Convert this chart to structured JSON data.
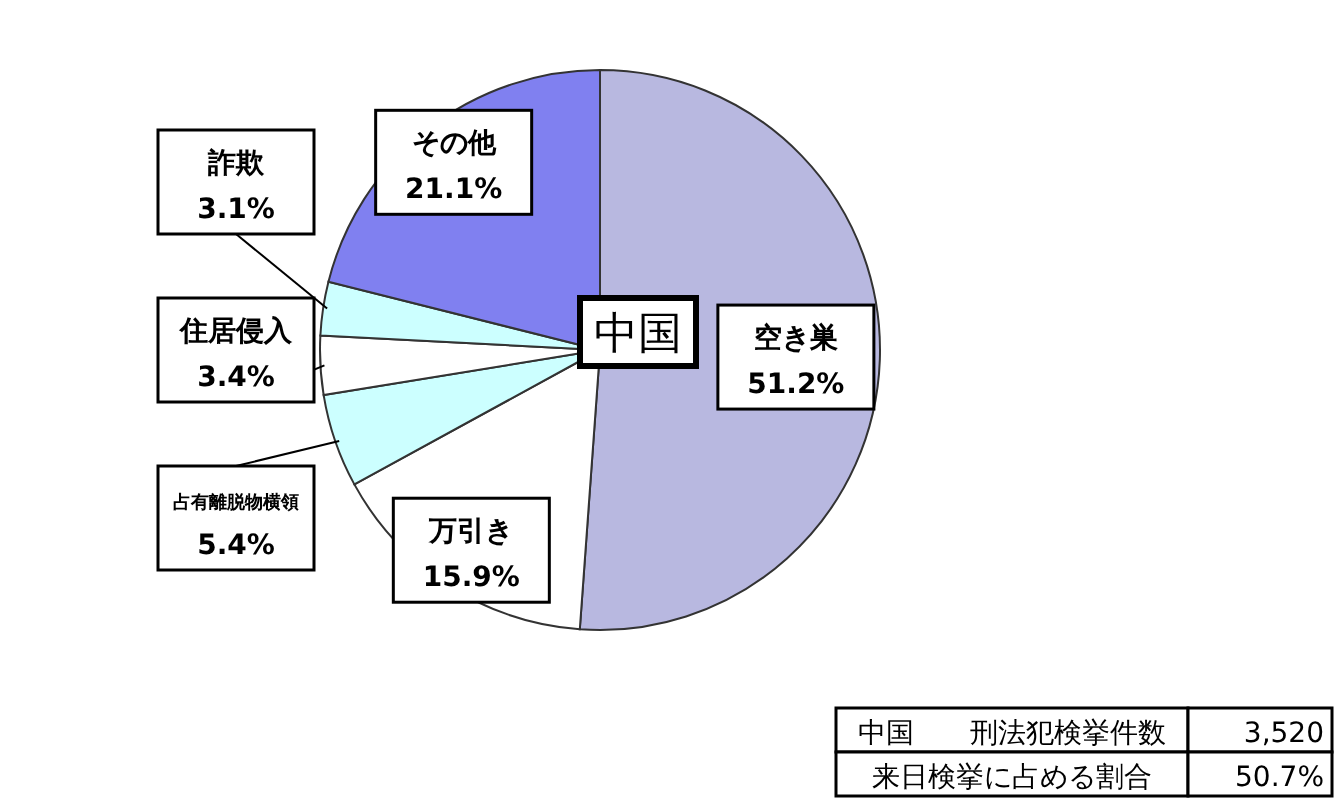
{
  "chart_data": {
    "type": "pie",
    "title": "中国",
    "categories": [
      "空き巣",
      "万引き",
      "占有離脱物横領",
      "住居侵入",
      "詐欺",
      "その他"
    ],
    "values": [
      51.2,
      15.9,
      5.4,
      3.4,
      3.1,
      21.1
    ],
    "value_labels": [
      "51.2%",
      "15.9%",
      "5.4%",
      "3.4%",
      "3.1%",
      "21.1%"
    ],
    "colors": [
      "#b8b8e0",
      "#ffffff",
      "#ccffff",
      "#ffffff",
      "#ccffff",
      "#8080f0"
    ],
    "annotations": [
      "中国　　刑法犯検挙件数",
      "3,520",
      "来日検挙に占める割合",
      "50.7%"
    ]
  }
}
